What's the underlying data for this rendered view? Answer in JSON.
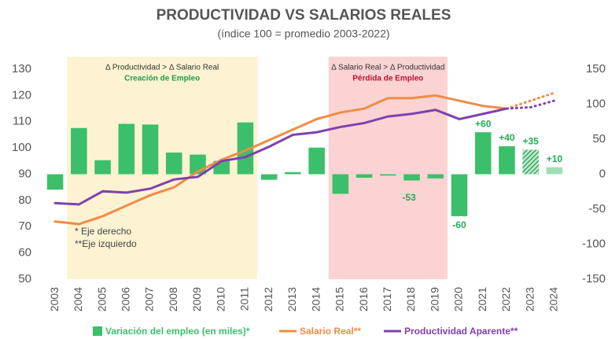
{
  "chart_data": {
    "type": "bar_line_combo",
    "title": "PRODUCTIVIDAD VS SALARIOS REALES",
    "subtitle": "(índice 100 = promedio 2003-2022)",
    "categories": [
      "2003",
      "2004",
      "2005",
      "2006",
      "2007",
      "2008",
      "2009",
      "2010",
      "2011",
      "2012",
      "2013",
      "2014",
      "2015",
      "2016",
      "2017",
      "2018",
      "2019",
      "2020",
      "2021",
      "2022",
      "2023",
      "2024"
    ],
    "ylim": [
      50,
      130
    ],
    "yticks": [
      50,
      60,
      70,
      80,
      90,
      100,
      110,
      120,
      130
    ],
    "y2lim": [
      -150,
      150
    ],
    "y2ticks": [
      -150,
      -100,
      -50,
      0,
      50,
      100,
      150
    ],
    "projection_start": "2022",
    "series": [
      {
        "name": "Variación del empleo (en miles)*",
        "type": "bar",
        "axis": "y2",
        "color": "#3cbf6a",
        "projected_color": "#9ee0b5",
        "values": [
          -22,
          66,
          20,
          72,
          71,
          31,
          28,
          19,
          74,
          -8,
          3,
          38,
          -28,
          -5,
          -2,
          -9,
          -6,
          -60,
          60,
          40,
          35,
          10
        ],
        "value_labels": [
          null,
          null,
          null,
          null,
          null,
          null,
          null,
          null,
          null,
          null,
          null,
          null,
          null,
          null,
          null,
          null,
          null,
          "-60",
          "+60",
          "+40",
          "+35",
          "+10"
        ],
        "hatched": "2023",
        "light": "2024"
      },
      {
        "name": "Salario Real**",
        "type": "line",
        "axis": "y",
        "color": "#f08c45",
        "values": [
          72,
          71,
          74,
          78,
          82,
          85,
          91,
          95.5,
          99,
          103,
          107,
          111,
          113.5,
          115,
          119,
          119,
          120,
          118,
          116,
          115,
          118,
          121
        ]
      },
      {
        "name": "Productividad Aparente**",
        "type": "line",
        "axis": "y",
        "color": "#8040b0",
        "values": [
          79,
          78.5,
          83.5,
          83,
          84.5,
          88,
          89,
          95,
          96.5,
          100.5,
          105,
          106,
          108,
          109.5,
          112,
          113,
          114.5,
          111,
          113,
          115,
          115.5,
          118
        ]
      }
    ],
    "regions": [
      {
        "from": "2004",
        "to": "2011",
        "color": "#fdf3d2",
        "text": "Δ Productividad > Δ Salario Real",
        "label": "Creación de Empleo",
        "label_color": "#1e9e4a"
      },
      {
        "from": "2015",
        "to": "2019",
        "color": "#fbd3d3",
        "text": "Δ Salario Real > Δ Productividad",
        "label": "Pérdida de Empleo",
        "label_color": "#c0102a"
      }
    ],
    "annotations": [
      "-53",
      "* Eje derecho",
      "**Eje izquierdo"
    ]
  }
}
